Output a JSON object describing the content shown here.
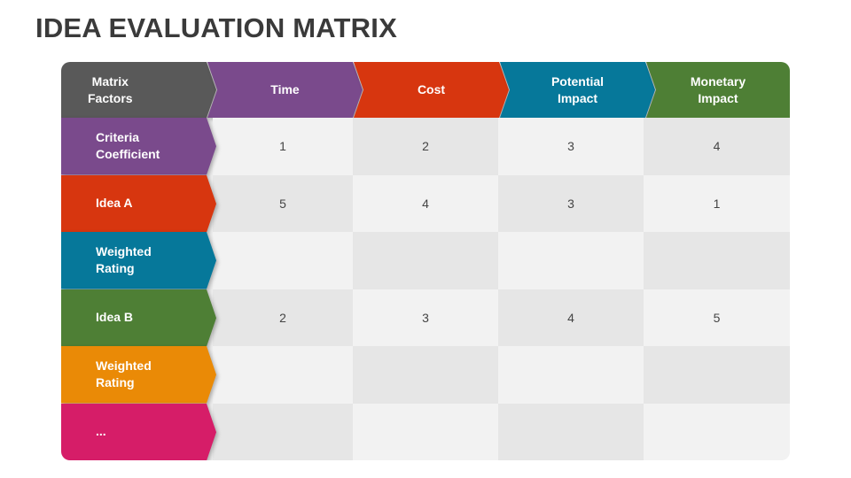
{
  "title": "IDEA EVALUATION MATRIX",
  "header": [
    {
      "label": "Matrix\nFactors",
      "color": "#595959"
    },
    {
      "label": "Time",
      "color": "#7a4a8c"
    },
    {
      "label": "Cost",
      "color": "#d7360f"
    },
    {
      "label": "Potential\nImpact",
      "color": "#06789a"
    },
    {
      "label": "Monetary\nImpact",
      "color": "#4e7f35"
    }
  ],
  "rows": [
    {
      "label": "Criteria\nCoefficient",
      "color": "#7a4a8c",
      "values": [
        "1",
        "2",
        "3",
        "4"
      ]
    },
    {
      "label": "Idea A",
      "color": "#d7360f",
      "values": [
        "5",
        "4",
        "3",
        "1"
      ]
    },
    {
      "label": "Weighted\nRating",
      "color": "#06789a",
      "values": [
        "",
        "",
        "",
        ""
      ]
    },
    {
      "label": "Idea B",
      "color": "#4e7f35",
      "values": [
        "2",
        "3",
        "4",
        "5"
      ]
    },
    {
      "label": "Weighted\nRating",
      "color": "#ea8a06",
      "values": [
        "",
        "",
        "",
        ""
      ]
    },
    {
      "label": "...",
      "color": "#d61d68",
      "values": [
        "",
        "",
        "",
        ""
      ]
    }
  ]
}
